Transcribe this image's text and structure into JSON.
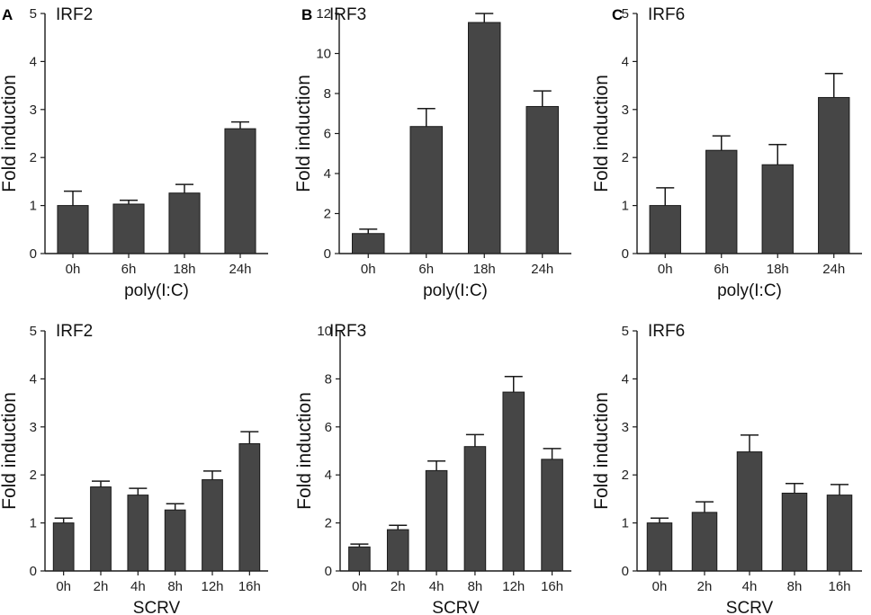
{
  "chart_data": [
    {
      "type": "bar",
      "panel_label": "A",
      "title": "IRF2",
      "ylabel": "Fold induction",
      "xlabel": "poly(I:C)",
      "ylim": [
        0,
        5
      ],
      "yticks": [
        0,
        1,
        2,
        3,
        4,
        5
      ],
      "categories": [
        "0h",
        "6h",
        "18h",
        "24h"
      ],
      "values": [
        1.0,
        1.03,
        1.26,
        2.6
      ],
      "errors": [
        0.3,
        0.08,
        0.18,
        0.14
      ]
    },
    {
      "type": "bar",
      "panel_label": "B",
      "title": "IRF3",
      "ylabel": "Fold induction",
      "xlabel": "poly(I:C)",
      "ylim": [
        0,
        12
      ],
      "yticks": [
        0,
        2,
        4,
        6,
        8,
        10,
        12
      ],
      "categories": [
        "0h",
        "6h",
        "18h",
        "24h"
      ],
      "values": [
        1.0,
        6.35,
        11.55,
        7.35
      ],
      "errors": [
        0.22,
        0.9,
        0.45,
        0.78
      ]
    },
    {
      "type": "bar",
      "panel_label": "C",
      "title": "IRF6",
      "ylabel": "Fold induction",
      "xlabel": "poly(I:C)",
      "ylim": [
        0,
        5
      ],
      "yticks": [
        0,
        1,
        2,
        3,
        4,
        5
      ],
      "categories": [
        "0h",
        "6h",
        "18h",
        "24h"
      ],
      "values": [
        1.0,
        2.15,
        1.85,
        3.25
      ],
      "errors": [
        0.37,
        0.3,
        0.42,
        0.5
      ]
    },
    {
      "type": "bar",
      "panel_label": "",
      "title": "IRF2",
      "ylabel": "Fold induction",
      "xlabel": "SCRV",
      "ylim": [
        0,
        5
      ],
      "yticks": [
        0,
        1,
        2,
        3,
        4,
        5
      ],
      "categories": [
        "0h",
        "2h",
        "4h",
        "8h",
        "12h",
        "16h"
      ],
      "values": [
        1.0,
        1.75,
        1.58,
        1.27,
        1.9,
        2.65
      ],
      "errors": [
        0.1,
        0.12,
        0.14,
        0.13,
        0.18,
        0.25
      ]
    },
    {
      "type": "bar",
      "panel_label": "",
      "title": "IRF3",
      "ylabel": "Fold induction",
      "xlabel": "SCRV",
      "ylim": [
        0,
        10
      ],
      "yticks": [
        0,
        2,
        4,
        6,
        8,
        10
      ],
      "categories": [
        "0h",
        "2h",
        "4h",
        "8h",
        "12h",
        "16h"
      ],
      "values": [
        1.0,
        1.72,
        4.18,
        5.18,
        7.45,
        4.65
      ],
      "errors": [
        0.12,
        0.18,
        0.4,
        0.5,
        0.65,
        0.45
      ]
    },
    {
      "type": "bar",
      "panel_label": "",
      "title": "IRF6",
      "ylabel": "Fold induction",
      "xlabel": "SCRV",
      "ylim": [
        0,
        5
      ],
      "yticks": [
        0,
        1,
        2,
        3,
        4,
        5
      ],
      "categories": [
        "0h",
        "2h",
        "4h",
        "8h",
        "16h"
      ],
      "values": [
        1.0,
        1.22,
        2.48,
        1.62,
        1.58
      ],
      "errors": [
        0.1,
        0.22,
        0.35,
        0.2,
        0.22
      ]
    }
  ],
  "colors": {
    "bar": "#464646",
    "axis": "#1a1a1a"
  }
}
